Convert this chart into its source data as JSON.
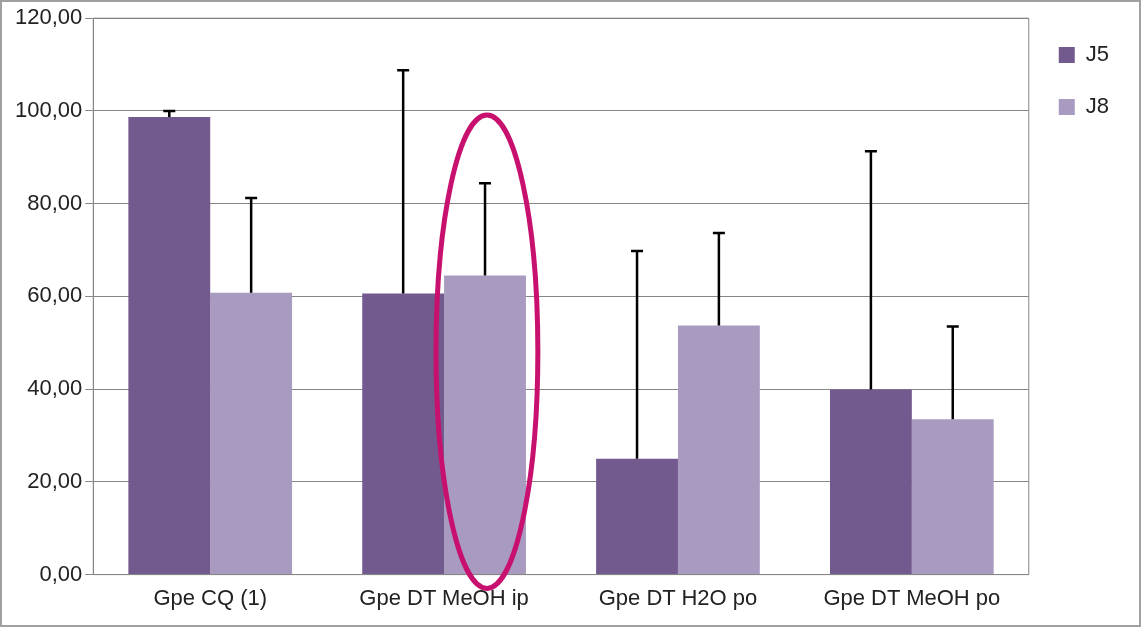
{
  "chart_data": {
    "type": "bar",
    "categories": [
      "Gpe CQ (1)",
      "Gpe DT MeOH ip",
      "Gpe DT H2O po",
      "Gpe DT MeOH po"
    ],
    "series": [
      {
        "name": "J5",
        "color": "#735a8e",
        "values": [
          98.7,
          60.6,
          25.0,
          39.9
        ],
        "errors": [
          [
            98.7,
            100.0
          ],
          [
            60.6,
            108.8
          ],
          [
            25.0,
            69.8
          ],
          [
            39.9,
            91.3
          ]
        ]
      },
      {
        "name": "J8",
        "color": "#a99bc0",
        "values": [
          60.8,
          64.5,
          53.7,
          33.5
        ],
        "errors": [
          [
            60.8,
            81.2
          ],
          [
            64.5,
            84.4
          ],
          [
            53.7,
            73.7
          ],
          [
            33.5,
            53.5
          ]
        ]
      }
    ],
    "ylim": [
      0,
      120
    ],
    "yticks": [
      {
        "value": 0,
        "label": "0,00"
      },
      {
        "value": 20,
        "label": "20,00"
      },
      {
        "value": 40,
        "label": "40,00"
      },
      {
        "value": 60,
        "label": "60,00"
      },
      {
        "value": 80,
        "label": "80,00"
      },
      {
        "value": 100,
        "label": "100,00"
      },
      {
        "value": 120,
        "label": "120,00"
      }
    ],
    "grid": "y",
    "legend": "top right"
  }
}
